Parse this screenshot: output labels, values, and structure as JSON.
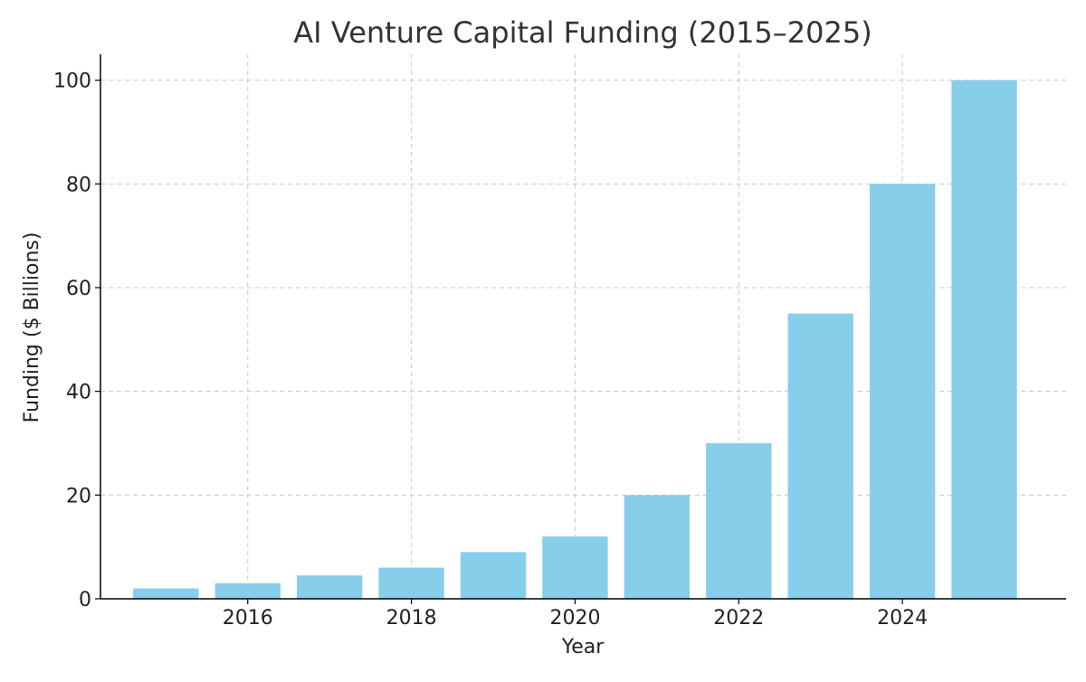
{
  "chart_data": {
    "type": "bar",
    "title": "AI Venture Capital Funding (2015–2025)",
    "xlabel": "Year",
    "ylabel": "Funding ($ Billions)",
    "categories": [
      2015,
      2016,
      2017,
      2018,
      2019,
      2020,
      2021,
      2022,
      2023,
      2024,
      2025
    ],
    "values": [
      2,
      3,
      4.5,
      6,
      9,
      12,
      20,
      30,
      55,
      80,
      100
    ],
    "xticks": [
      "2016",
      "2018",
      "2020",
      "2022",
      "2024"
    ],
    "yticks": [
      "0",
      "20",
      "40",
      "60",
      "80",
      "100"
    ],
    "ylim": [
      0,
      105
    ],
    "xlim": [
      2014.2,
      2026.0
    ],
    "grid": true,
    "bar_color": "#87ceeb",
    "legend": null
  }
}
